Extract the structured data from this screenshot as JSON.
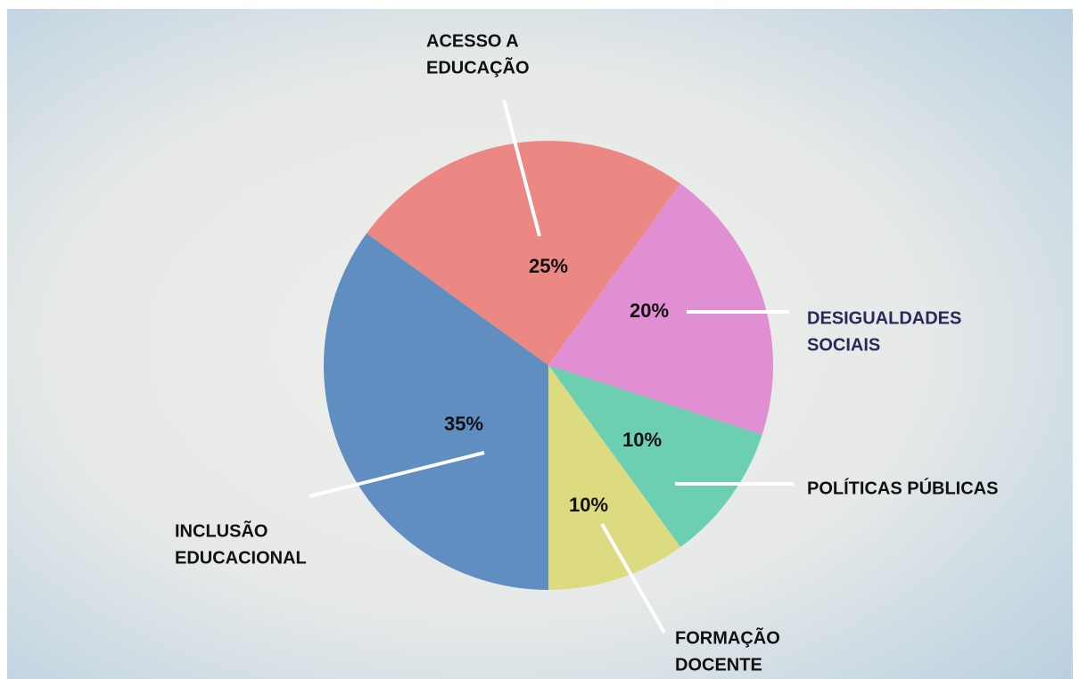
{
  "chart_data": {
    "type": "pie",
    "categories": [
      [
        "ACESSO A",
        "EDUCAÇÃO"
      ],
      [
        "DESIGUALDADES",
        "SOCIAIS"
      ],
      [
        "POLÍTICAS PÚBLICAS"
      ],
      [
        "FORMAÇÃO",
        "DOCENTE"
      ],
      [
        "INCLUSÃO",
        "EDUCACIONAL"
      ]
    ],
    "values": [
      25,
      20,
      10,
      10,
      35
    ],
    "value_labels": [
      "25%",
      "20%",
      "10%",
      "10%",
      "35%"
    ],
    "colors": [
      "#ec8884",
      "#e08fd2",
      "#6ccfb1",
      "#dcdb80",
      "#608ec0"
    ]
  }
}
